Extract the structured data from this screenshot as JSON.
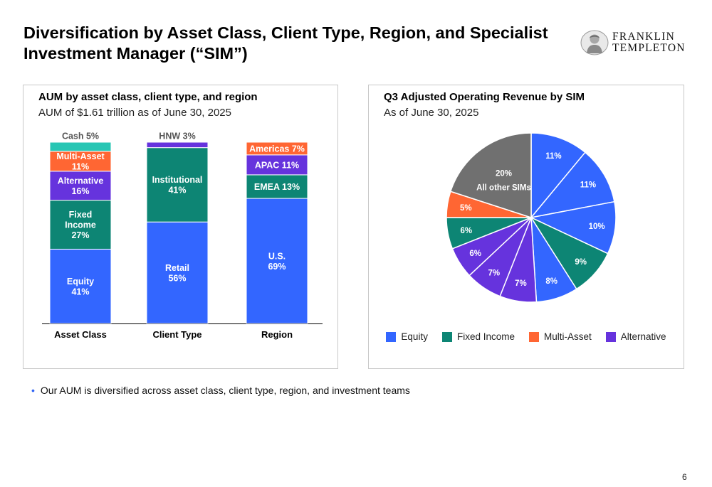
{
  "slide": {
    "title": "Diversification by Asset Class, Client Type, Region, and Specialist Investment Manager (“SIM”)",
    "logo_line1": "FRANKLIN",
    "logo_line2": "TEMPLETON",
    "bullet": "Our AUM is diversified across asset class, client type, region, and investment teams",
    "page_number": "6"
  },
  "colors": {
    "equity": "#3366ff",
    "fixed_income": "#0d8574",
    "multi_asset": "#ff6633",
    "alternative": "#6633dd",
    "cash": "#28c6b4",
    "other": "#707070",
    "bullet": "#2f63f5"
  },
  "chart_data": [
    {
      "type": "bar",
      "stacked": true,
      "title": "AUM by asset class, client type, and region",
      "subtitle": "AUM of $1.61 trillion as of June 30, 2025",
      "categories": [
        "Asset Class",
        "Client Type",
        "Region"
      ],
      "unit": "%",
      "ylim": [
        0,
        100
      ],
      "grid": false,
      "stacks": [
        {
          "category": "Asset Class",
          "segments": [
            {
              "label": "Equity",
              "value": 41,
              "text": "Equity\n41%",
              "color": "#3366ff"
            },
            {
              "label": "Fixed Income",
              "value": 27,
              "text": "Fixed\nIncome\n27%",
              "color": "#0d8574"
            },
            {
              "label": "Alternative",
              "value": 16,
              "text": "Alternative\n16%",
              "color": "#6633dd"
            },
            {
              "label": "Multi-Asset",
              "value": 11,
              "text": "Multi-Asset\n11%",
              "color": "#ff6633"
            },
            {
              "label": "Cash",
              "value": 5,
              "text": "Cash 5%",
              "color": "#28c6b4",
              "label_outside": true
            }
          ]
        },
        {
          "category": "Client Type",
          "segments": [
            {
              "label": "Retail",
              "value": 56,
              "text": "Retail\n56%",
              "color": "#3366ff"
            },
            {
              "label": "Institutional",
              "value": 41,
              "text": "Institutional\n41%",
              "color": "#0d8574"
            },
            {
              "label": "HNW",
              "value": 3,
              "text": "HNW 3%",
              "color": "#6633dd",
              "label_outside": true
            }
          ]
        },
        {
          "category": "Region",
          "segments": [
            {
              "label": "U.S.",
              "value": 69,
              "text": "U.S.\n69%",
              "color": "#3366ff"
            },
            {
              "label": "EMEA",
              "value": 13,
              "text": "EMEA 13%",
              "color": "#0d8574"
            },
            {
              "label": "APAC",
              "value": 11,
              "text": "APAC 11%",
              "color": "#6633dd"
            },
            {
              "label": "Americas",
              "value": 7,
              "text": "Americas 7%",
              "color": "#ff6633"
            }
          ]
        }
      ]
    },
    {
      "type": "pie",
      "title": "Q3 Adjusted Operating Revenue by SIM",
      "subtitle": "As of June 30, 2025",
      "unit": "%",
      "start": "12 o'clock",
      "direction": "clockwise",
      "legend_position": "bottom",
      "legend": [
        {
          "name": "Equity",
          "color": "#3366ff"
        },
        {
          "name": "Fixed Income",
          "color": "#0d8574"
        },
        {
          "name": "Multi-Asset",
          "color": "#ff6633"
        },
        {
          "name": "Alternative",
          "color": "#6633dd"
        }
      ],
      "slices": [
        {
          "category": "Equity",
          "value": 11,
          "label": "11%"
        },
        {
          "category": "Equity",
          "value": 11,
          "label": "11%"
        },
        {
          "category": "Equity",
          "value": 10,
          "label": "10%"
        },
        {
          "category": "Fixed Income",
          "value": 9,
          "label": "9%"
        },
        {
          "category": "Equity",
          "value": 8,
          "label": "8%"
        },
        {
          "category": "Alternative",
          "value": 7,
          "label": "7%"
        },
        {
          "category": "Alternative",
          "value": 7,
          "label": "7%"
        },
        {
          "category": "Alternative",
          "value": 6,
          "label": "6%"
        },
        {
          "category": "Fixed Income",
          "value": 6,
          "label": "6%"
        },
        {
          "category": "Multi-Asset",
          "value": 5,
          "label": "5%"
        },
        {
          "category": "All other SIMs",
          "value": 20,
          "label": "20%\nAll other SIMs",
          "color": "#707070"
        }
      ]
    }
  ]
}
